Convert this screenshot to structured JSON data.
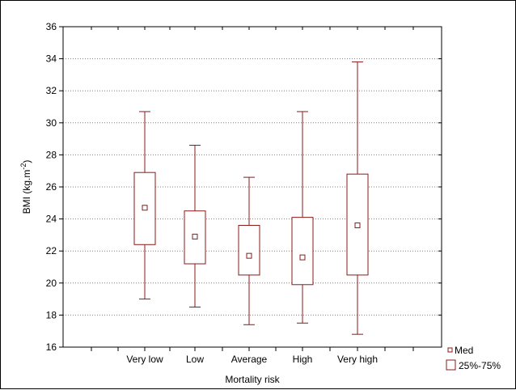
{
  "chart_data": {
    "type": "box",
    "xlabel": "Mortality risk",
    "ylabel_parts": {
      "base": "BMI (kg.m",
      "sup": "-2",
      "end": ")"
    },
    "ylim": [
      16,
      36
    ],
    "yticks": [
      16,
      18,
      20,
      22,
      24,
      26,
      28,
      30,
      32,
      34,
      36
    ],
    "grid": "horizontal-dotted",
    "categories": [
      "Very low",
      "Low",
      "Average",
      "High",
      "Very high"
    ],
    "boxes": [
      {
        "category": "Very low",
        "min": 19.0,
        "q1": 22.4,
        "median": 24.7,
        "q3": 26.9,
        "max": 30.7
      },
      {
        "category": "Low",
        "min": 18.5,
        "q1": 21.2,
        "median": 22.9,
        "q3": 24.5,
        "max": 28.6
      },
      {
        "category": "Average",
        "min": 17.4,
        "q1": 20.5,
        "median": 21.7,
        "q3": 23.6,
        "max": 26.6
      },
      {
        "category": "High",
        "min": 17.5,
        "q1": 19.9,
        "median": 21.6,
        "q3": 24.1,
        "max": 30.7
      },
      {
        "category": "Very high",
        "min": 16.8,
        "q1": 20.5,
        "median": 23.6,
        "q3": 26.8,
        "max": 33.8
      }
    ],
    "legend": {
      "position": "bottom-right",
      "median_label": "Med",
      "box_label": "25%-75%"
    },
    "colors": {
      "box": "#8b1a1a",
      "grid": "#7f7f7f",
      "axis": "#000000"
    }
  }
}
